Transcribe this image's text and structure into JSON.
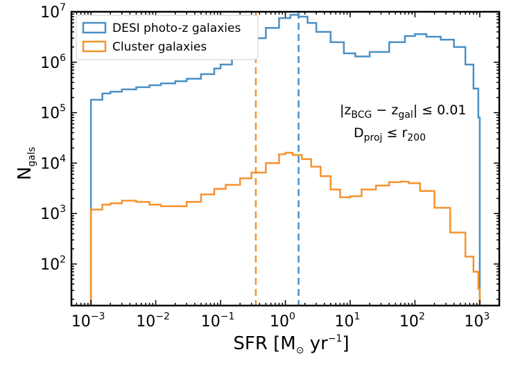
{
  "chart_data": {
    "type": "step-histogram",
    "xscale": "log",
    "yscale": "log",
    "xlim": [
      0.0005,
      2000
    ],
    "ylim": [
      15,
      10000000
    ],
    "xlabel": "SFR [M_sun yr^-1]",
    "xlabel_parts": {
      "main": "SFR [M",
      "sub": "⊙",
      "unit": " yr",
      "sup": "−1",
      "close": "]"
    },
    "ylabel": "N_gals",
    "ylabel_parts": {
      "main": "N",
      "sub": "gals"
    },
    "x_ticks": [
      {
        "value": 0.001,
        "base": "10",
        "exp": "−3"
      },
      {
        "value": 0.01,
        "base": "10",
        "exp": "−2"
      },
      {
        "value": 0.1,
        "base": "10",
        "exp": "−1"
      },
      {
        "value": 1,
        "base": "10",
        "exp": "0"
      },
      {
        "value": 10,
        "base": "10",
        "exp": "1"
      },
      {
        "value": 100,
        "base": "10",
        "exp": "2"
      },
      {
        "value": 1000,
        "base": "10",
        "exp": "3"
      }
    ],
    "y_ticks": [
      {
        "value": 100,
        "base": "10",
        "exp": "2"
      },
      {
        "value": 1000,
        "base": "10",
        "exp": "3"
      },
      {
        "value": 10000,
        "base": "10",
        "exp": "4"
      },
      {
        "value": 100000,
        "base": "10",
        "exp": "5"
      },
      {
        "value": 1000000,
        "base": "10",
        "exp": "6"
      },
      {
        "value": 10000000,
        "base": "10",
        "exp": "7"
      }
    ],
    "series": [
      {
        "name": "DESI photo-z galaxies",
        "color": "#4a8fc4",
        "points": [
          [
            0.001,
            180000
          ],
          [
            0.0015,
            240000
          ],
          [
            0.002,
            260000
          ],
          [
            0.003,
            290000
          ],
          [
            0.005,
            320000
          ],
          [
            0.008,
            350000
          ],
          [
            0.012,
            380000
          ],
          [
            0.02,
            420000
          ],
          [
            0.03,
            470000
          ],
          [
            0.05,
            580000
          ],
          [
            0.08,
            750000
          ],
          [
            0.1,
            900000
          ],
          [
            0.15,
            1400000
          ],
          [
            0.2,
            2000000
          ],
          [
            0.3,
            3000000
          ],
          [
            0.5,
            4800000
          ],
          [
            0.8,
            7500000
          ],
          [
            1.2,
            8700000
          ],
          [
            1.6,
            8000000
          ],
          [
            2.2,
            6000000
          ],
          [
            3,
            4000000
          ],
          [
            5,
            2500000
          ],
          [
            8,
            1500000
          ],
          [
            12,
            1300000
          ],
          [
            20,
            1600000
          ],
          [
            40,
            2500000
          ],
          [
            70,
            3300000
          ],
          [
            100,
            3600000
          ],
          [
            150,
            3200000
          ],
          [
            250,
            2800000
          ],
          [
            400,
            2000000
          ],
          [
            600,
            900000
          ],
          [
            800,
            300000
          ],
          [
            950,
            80000
          ]
        ]
      },
      {
        "name": "Cluster galaxies",
        "color": "#f5922d",
        "points": [
          [
            0.001,
            1200
          ],
          [
            0.0015,
            1500
          ],
          [
            0.002,
            1600
          ],
          [
            0.003,
            1800
          ],
          [
            0.005,
            1700
          ],
          [
            0.008,
            1500
          ],
          [
            0.012,
            1400
          ],
          [
            0.02,
            1400
          ],
          [
            0.03,
            1700
          ],
          [
            0.05,
            2400
          ],
          [
            0.08,
            3100
          ],
          [
            0.12,
            3700
          ],
          [
            0.2,
            5000
          ],
          [
            0.3,
            6500
          ],
          [
            0.5,
            10000
          ],
          [
            0.8,
            15000
          ],
          [
            1.0,
            16000
          ],
          [
            1.3,
            14500
          ],
          [
            1.8,
            12000
          ],
          [
            2.5,
            8500
          ],
          [
            3.5,
            5500
          ],
          [
            5,
            3000
          ],
          [
            7,
            2100
          ],
          [
            10,
            2200
          ],
          [
            15,
            3000
          ],
          [
            25,
            3600
          ],
          [
            40,
            4200
          ],
          [
            60,
            4300
          ],
          [
            80,
            4000
          ],
          [
            120,
            2800
          ],
          [
            200,
            1300
          ],
          [
            350,
            420
          ],
          [
            600,
            140
          ],
          [
            800,
            70
          ],
          [
            950,
            32
          ]
        ]
      }
    ],
    "vlines": [
      {
        "x": 0.35,
        "color": "#f5922d",
        "style": "dashed"
      },
      {
        "x": 1.6,
        "color": "#4a8fc4",
        "style": "dashed"
      }
    ],
    "legend": {
      "placement": "top-left",
      "entries": [
        "DESI photo-z galaxies",
        "Cluster galaxies"
      ]
    },
    "annotation": {
      "line1": {
        "bar": "|",
        "z1": "z",
        "z1sub": "BCG",
        "minus": " − ",
        "z2": "z",
        "z2sub": "gal",
        "rest": "| ≤ 0.01"
      },
      "line2": {
        "d": "D",
        "dsub": "proj",
        "le": " ≤ ",
        "r": "r",
        "rsub": "200"
      }
    }
  }
}
